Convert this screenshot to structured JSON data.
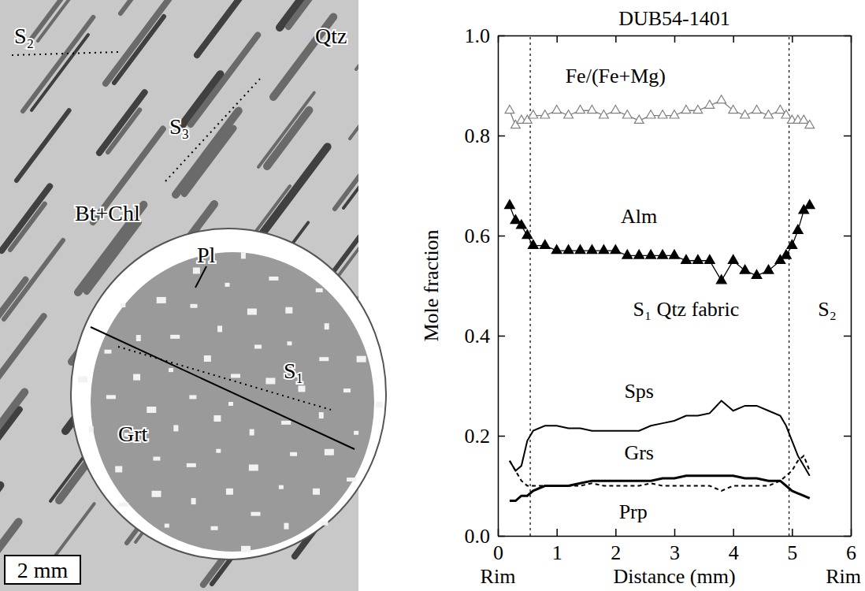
{
  "chart_data": {
    "type": "line",
    "title": "DUB54-1401",
    "x_label": "Distance (mm)",
    "y_label": "Mole fraction",
    "x_end_labels": [
      "Rim",
      "Rim"
    ],
    "xlim": [
      0,
      6
    ],
    "ylim": [
      0,
      1
    ],
    "xticks": [
      0,
      1,
      2,
      3,
      4,
      5,
      6
    ],
    "yticks": [
      {
        "value": 0,
        "label": "0.0"
      },
      {
        "value": 0.2,
        "label": "0.2"
      },
      {
        "value": 0.4,
        "label": "0.4"
      },
      {
        "value": 0.6,
        "label": "0.6"
      },
      {
        "value": 0.8,
        "label": "0.8"
      },
      {
        "value": 1,
        "label": "1.0"
      }
    ],
    "grid": false,
    "x": [
      0.2,
      0.3,
      0.4,
      0.5,
      0.6,
      0.8,
      1.0,
      1.2,
      1.4,
      1.6,
      1.8,
      2.0,
      2.2,
      2.4,
      2.6,
      2.8,
      3.0,
      3.2,
      3.4,
      3.6,
      3.8,
      4.0,
      4.2,
      4.4,
      4.6,
      4.8,
      4.9,
      5.0,
      5.1,
      5.2,
      5.3
    ],
    "series": [
      {
        "name": "Fe/(Fe+Mg)",
        "color": "#808080",
        "marker": "triangle-open",
        "line_style": "solid",
        "values": [
          0.85,
          0.82,
          0.83,
          0.83,
          0.84,
          0.84,
          0.85,
          0.84,
          0.85,
          0.85,
          0.84,
          0.85,
          0.84,
          0.83,
          0.84,
          0.84,
          0.84,
          0.85,
          0.85,
          0.86,
          0.87,
          0.85,
          0.84,
          0.85,
          0.84,
          0.85,
          0.84,
          0.83,
          0.83,
          0.83,
          0.82
        ]
      },
      {
        "name": "Alm",
        "color": "#000000",
        "marker": "triangle",
        "line_style": "solid",
        "values": [
          0.66,
          0.63,
          0.62,
          0.6,
          0.58,
          0.58,
          0.57,
          0.57,
          0.57,
          0.57,
          0.57,
          0.57,
          0.56,
          0.56,
          0.56,
          0.56,
          0.56,
          0.55,
          0.55,
          0.55,
          0.51,
          0.55,
          0.53,
          0.52,
          0.53,
          0.55,
          0.56,
          0.58,
          0.61,
          0.65,
          0.66
        ]
      },
      {
        "name": "Sps",
        "color": "#000000",
        "marker": "none",
        "line_style": "solid",
        "values": [
          0.15,
          0.13,
          0.14,
          0.19,
          0.21,
          0.22,
          0.22,
          0.215,
          0.215,
          0.21,
          0.21,
          0.21,
          0.21,
          0.21,
          0.22,
          0.225,
          0.23,
          0.24,
          0.24,
          0.245,
          0.27,
          0.25,
          0.26,
          0.26,
          0.25,
          0.24,
          0.22,
          0.19,
          0.16,
          0.14,
          0.12
        ]
      },
      {
        "name": "Grs",
        "color": "#000000",
        "marker": "none",
        "line_style": "solid",
        "values": [
          0.07,
          0.07,
          0.08,
          0.08,
          0.09,
          0.1,
          0.1,
          0.1,
          0.105,
          0.11,
          0.11,
          0.11,
          0.11,
          0.11,
          0.11,
          0.115,
          0.115,
          0.12,
          0.12,
          0.12,
          0.12,
          0.12,
          0.115,
          0.115,
          0.11,
          0.11,
          0.1,
          0.09,
          0.085,
          0.08,
          0.075
        ]
      },
      {
        "name": "Prp",
        "color": "#000000",
        "marker": "none",
        "line_style": "dashed",
        "values": [
          0.15,
          0.13,
          0.11,
          0.1,
          0.1,
          0.1,
          0.1,
          0.1,
          0.1,
          0.105,
          0.1,
          0.1,
          0.1,
          0.1,
          0.105,
          0.1,
          0.1,
          0.1,
          0.1,
          0.1,
          0.09,
          0.1,
          0.1,
          0.1,
          0.1,
          0.11,
          0.12,
          0.13,
          0.15,
          0.16,
          0.13
        ]
      }
    ],
    "boundaries": [
      0.55,
      4.95
    ],
    "annotations": [
      {
        "text": "S₁ Qtz fabric",
        "x": 3.2,
        "y": 0.44
      },
      {
        "text": "S₂",
        "x": 5.6,
        "y": 0.44
      }
    ]
  },
  "image": {
    "labels": [
      "S₂",
      "S₃",
      "Qtz",
      "Pl",
      "Bt+Chl",
      "Grt",
      "S₁"
    ],
    "scale_bar": "2 mm"
  }
}
